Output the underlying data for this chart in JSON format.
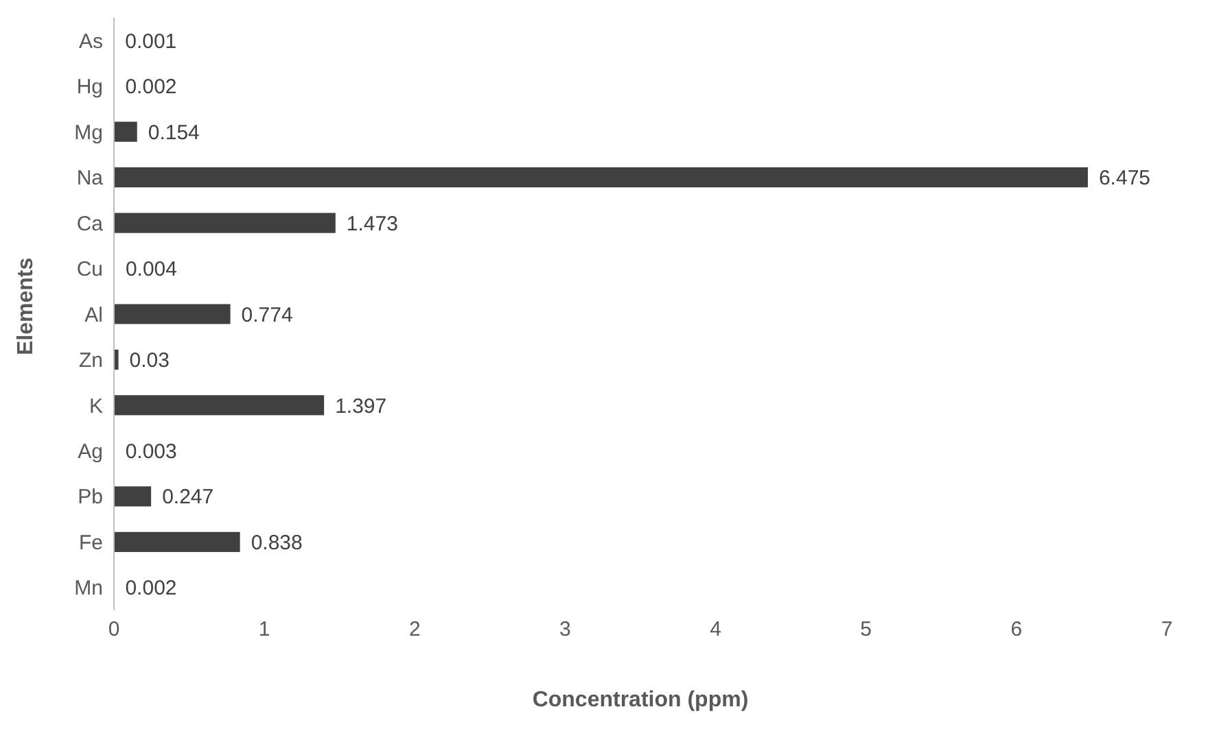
{
  "chart_data": {
    "type": "bar",
    "orientation": "horizontal",
    "xlabel": "Concentration (ppm)",
    "ylabel": "Elements",
    "categories": [
      "As",
      "Hg",
      "Mg",
      "Na",
      "Ca",
      "Cu",
      "Al",
      "Zn",
      "K",
      "Ag",
      "Pb",
      "Fe",
      "Mn"
    ],
    "values": [
      0.001,
      0.002,
      0.154,
      6.475,
      1.473,
      0.004,
      0.774,
      0.03,
      1.397,
      0.003,
      0.247,
      0.838,
      0.002
    ],
    "color": "#404040",
    "xlim": [
      0,
      7
    ],
    "xticks": [
      0,
      1,
      2,
      3,
      4,
      5,
      6,
      7
    ],
    "data_labels": true
  }
}
